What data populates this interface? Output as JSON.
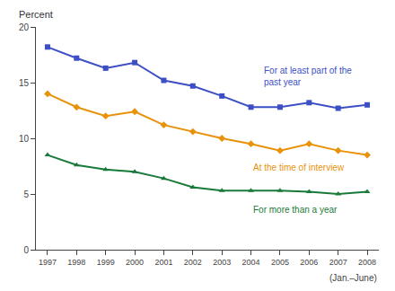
{
  "chart_data": {
    "type": "line",
    "ylabel": "Percent",
    "xlabel": "(Jan.–June)",
    "x": [
      1997,
      1998,
      1999,
      2000,
      2001,
      2002,
      2003,
      2004,
      2005,
      2006,
      2007,
      2008
    ],
    "series": [
      {
        "name": "For at least part of the\npast year",
        "color": "#3d4fc4",
        "marker": "square",
        "values": [
          18.2,
          17.2,
          16.3,
          16.8,
          15.2,
          14.7,
          13.8,
          12.8,
          12.8,
          13.2,
          12.7,
          13.0
        ]
      },
      {
        "name": "At the time of interview",
        "color": "#e8920a",
        "marker": "diamond",
        "values": [
          14.0,
          12.8,
          12.0,
          12.4,
          11.2,
          10.6,
          10.0,
          9.5,
          8.9,
          9.5,
          8.9,
          8.5
        ]
      },
      {
        "name": "For more than a year",
        "color": "#1a7a3a",
        "marker": "triangle-up",
        "values": [
          8.5,
          7.6,
          7.2,
          7.0,
          6.4,
          5.6,
          5.3,
          5.3,
          5.3,
          5.2,
          5.0,
          5.2
        ]
      }
    ],
    "xlim": [
      1996.6,
      2008.4
    ],
    "xticks": [
      1997,
      1998,
      1999,
      2000,
      2001,
      2002,
      2003,
      2004,
      2005,
      2006,
      2007,
      2008
    ],
    "ylim": [
      0,
      20
    ],
    "yticks": [
      0,
      5,
      10,
      15,
      20
    ],
    "grid": false
  }
}
